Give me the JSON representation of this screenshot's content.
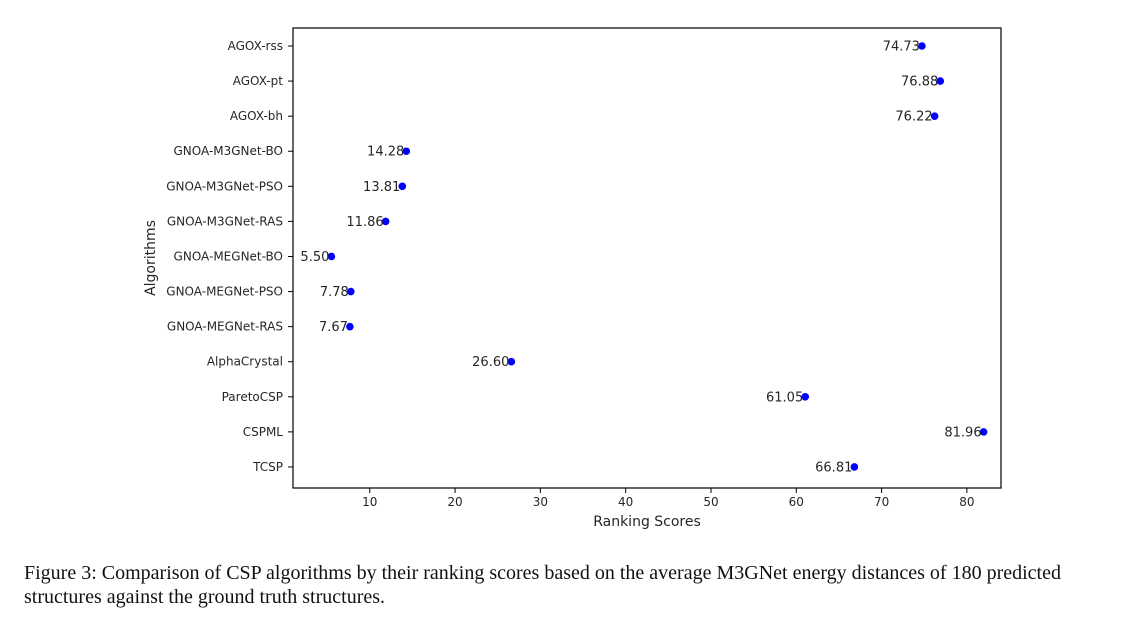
{
  "chart_data": {
    "type": "scatter",
    "orientation": "horizontal",
    "xlabel": "Ranking Scores",
    "ylabel": "Algorithms",
    "xlim": [
      1,
      84
    ],
    "x_ticks": [
      10,
      20,
      30,
      40,
      50,
      60,
      70,
      80
    ],
    "grid": false,
    "marker_color": "#0000ff",
    "categories": [
      "AGOX-rss",
      "AGOX-pt",
      "AGOX-bh",
      "GNOA-M3GNet-BO",
      "GNOA-M3GNet-PSO",
      "GNOA-M3GNet-RAS",
      "GNOA-MEGNet-BO",
      "GNOA-MEGNet-PSO",
      "GNOA-MEGNet-RAS",
      "AlphaCrystal",
      "ParetoCSP",
      "CSPML",
      "TCSP"
    ],
    "values": [
      74.73,
      76.88,
      76.22,
      14.28,
      13.81,
      11.86,
      5.5,
      7.78,
      7.67,
      26.6,
      61.05,
      81.96,
      66.81
    ],
    "data_labels": [
      "74.73",
      "76.88",
      "76.22",
      "14.28",
      "13.81",
      "11.86",
      "5.50",
      "7.78",
      "7.67",
      "26.60",
      "61.05",
      "81.96",
      "66.81"
    ]
  },
  "caption": "Figure 3: Comparison of CSP algorithms by their ranking scores based on the average M3GNet energy distances of 180 predicted structures against the ground truth structures."
}
